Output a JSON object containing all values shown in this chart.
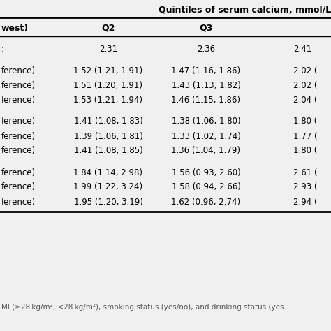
{
  "title": "Quintiles of serum calcium, mmol/L",
  "col0_header": "west)",
  "col1_header": "Q2",
  "col2_header": "Q3",
  "rows": [
    [
      ":",
      "2.31",
      "2.36",
      "2.41"
    ],
    [
      "",
      "",
      "",
      ""
    ],
    [
      "ference)",
      "1.52 (1.21, 1.91)",
      "1.47 (1.16, 1.86)",
      "2.02 ("
    ],
    [
      "ference)",
      "1.51 (1.20, 1.91)",
      "1.43 (1.13, 1.82)",
      "2.02 ("
    ],
    [
      "ference)",
      "1.53 (1.21, 1.94)",
      "1.46 (1.15, 1.86)",
      "2.04 ("
    ],
    [
      "",
      "",
      "",
      ""
    ],
    [
      "ference)",
      "1.41 (1.08, 1.83)",
      "1.38 (1.06, 1.80)",
      "1.80 ("
    ],
    [
      "ference)",
      "1.39 (1.06, 1.81)",
      "1.33 (1.02, 1.74)",
      "1.77 ("
    ],
    [
      "ference)",
      "1.41 (1.08, 1.85)",
      "1.36 (1.04, 1.79)",
      "1.80 ("
    ],
    [
      "",
      "",
      "",
      ""
    ],
    [
      "ference)",
      "1.84 (1.14, 2.98)",
      "1.56 (0.93, 2.60)",
      "2.61 ("
    ],
    [
      "ference)",
      "1.99 (1.22, 3.24)",
      "1.58 (0.94, 2.66)",
      "2.93 ("
    ],
    [
      "ference)",
      "1.95 (1.20, 3.19)",
      "1.62 (0.96, 2.74)",
      "2.94 ("
    ]
  ],
  "footer": "MI (≥28 kg/m², <28 kg/m²), smoking status (yes/no), and drinking status (yes",
  "bg_color": "#f0f0f0",
  "text_color": "#000000",
  "line_color": "#000000",
  "title_fontsize": 9.0,
  "header_fontsize": 9.0,
  "data_fontsize": 8.5,
  "footer_fontsize": 7.5,
  "figsize": [
    4.74,
    4.74
  ],
  "dpi": 100
}
